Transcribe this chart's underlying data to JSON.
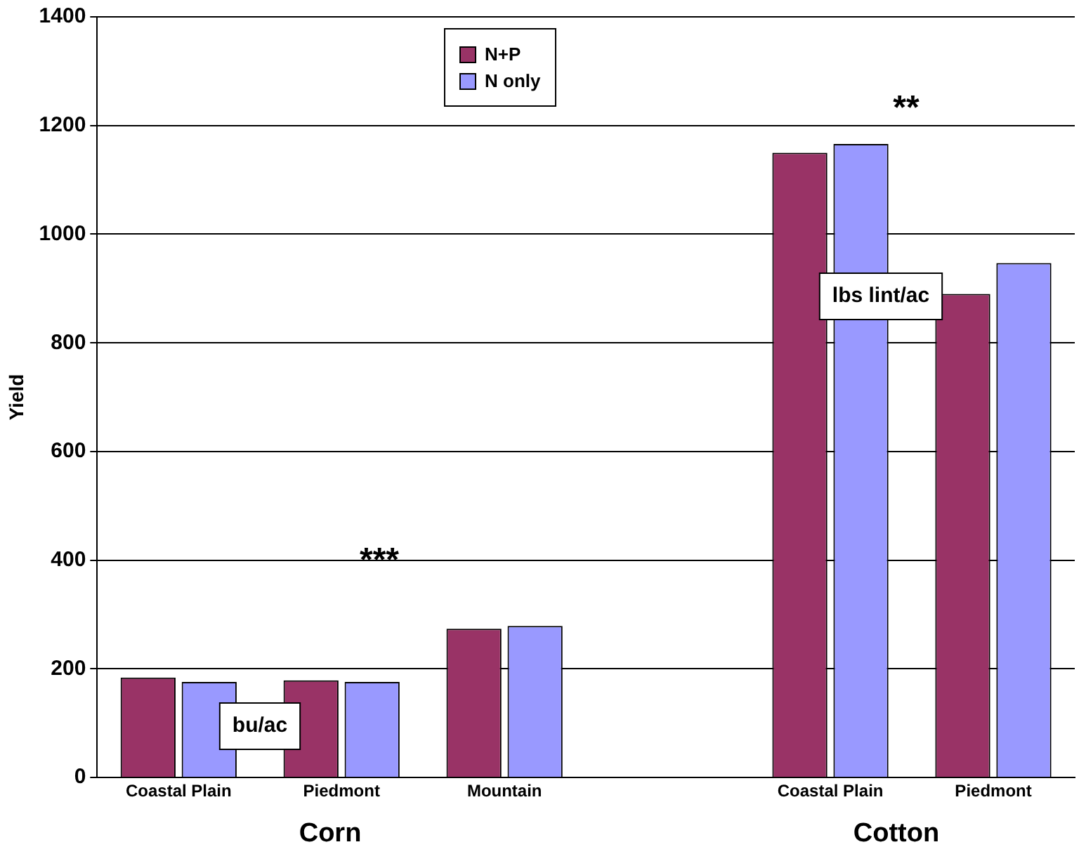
{
  "chart_data": {
    "type": "bar",
    "ylabel": "Yield",
    "categories": [
      "Coastal Plain",
      "Piedmont",
      "Mountain",
      null,
      "Coastal Plain",
      "Piedmont"
    ],
    "series": [
      {
        "name": "N+P",
        "color": "#993366",
        "values": [
          184,
          179,
          274,
          null,
          1150,
          890
        ]
      },
      {
        "name": "N only",
        "color": "#9999ff",
        "values": [
          176,
          176,
          279,
          null,
          1166,
          947
        ]
      }
    ],
    "ylim": [
      0,
      1400
    ],
    "yticks": [
      0,
      200,
      400,
      600,
      800,
      1000,
      1200,
      1400
    ],
    "grid": "y",
    "legend": "top",
    "annotations": [
      "***",
      "**",
      "bu/ac",
      "lbs lint/ac",
      "Corn",
      "Cotton"
    ]
  }
}
